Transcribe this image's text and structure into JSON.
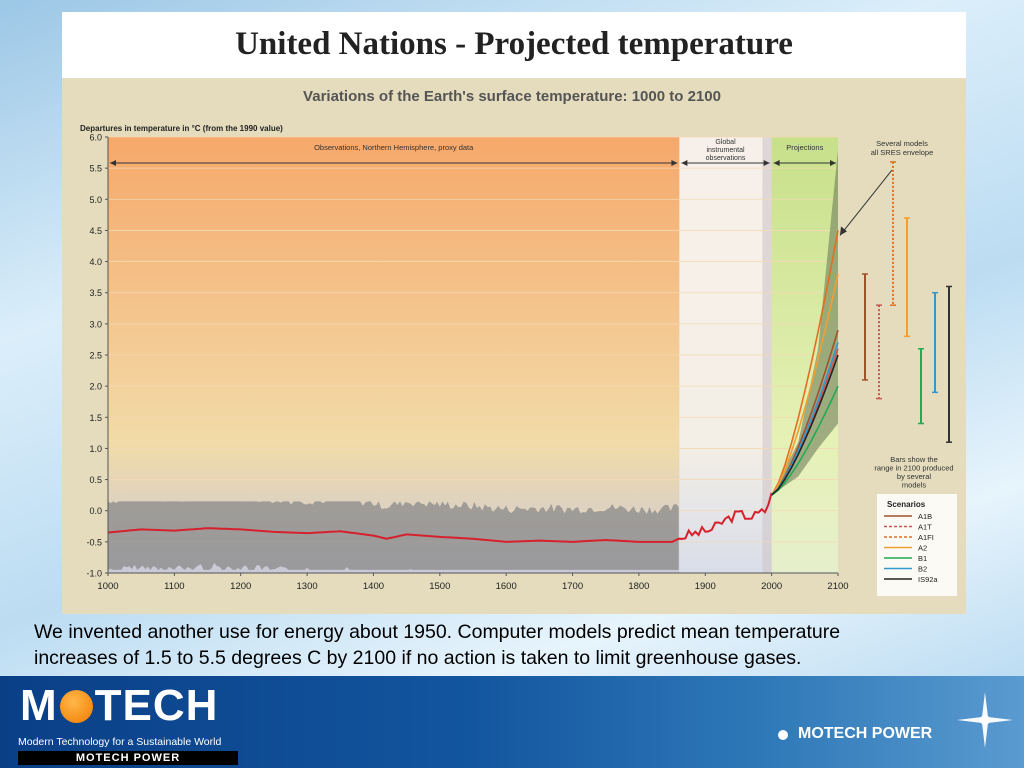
{
  "slide": {
    "title": "United Nations - Projected temperature",
    "caption_line1": "We invented another use for energy about 1950. Computer models predict mean temperature",
    "caption_line2": "increases of 1.5 to 5.5 degrees C by 2100 if no action is taken to limit greenhouse gases."
  },
  "footer": {
    "logo_prefix": "M",
    "logo_suffix": "TECH",
    "tagline": "Modern Technology for a Sustainable World",
    "logo_bar": "MOTECH POWER",
    "brand_label": "MOTECH POWER"
  },
  "chart_data": {
    "type": "line",
    "title": "Variations of the Earth's surface temperature: 1000 to 2100",
    "ylabel": "Departures in temperature in °C (from the 1990 value)",
    "xlim": [
      1000,
      2100
    ],
    "ylim": [
      -1.0,
      6.0
    ],
    "x_ticks": [
      "1000",
      "1100",
      "1200",
      "1300",
      "1400",
      "1500",
      "1600",
      "1700",
      "1800",
      "1900",
      "2000",
      "2100"
    ],
    "y_ticks": [
      "6.0",
      "5.5",
      "5.0",
      "4.5",
      "4.0",
      "3.5",
      "3.0",
      "2.5",
      "2.0",
      "1.5",
      "1.0",
      "0.5",
      "0.0",
      "-0.5",
      "-1.0"
    ],
    "regions": [
      {
        "label": "Observations, Northern Hemisphere, proxy data",
        "from": 1000,
        "to": 1861
      },
      {
        "label": "Global instrumental observations",
        "from": 1861,
        "to": 2000
      },
      {
        "label": "Projections",
        "from": 2000,
        "to": 2100
      }
    ],
    "annotations": {
      "envelope_note": "Several models all SRES envelope",
      "bars_note": "Bars show the range in 2100 produced by several models",
      "scenarios_heading": "Scenarios"
    },
    "observed": {
      "x": [
        1000,
        1050,
        1100,
        1150,
        1200,
        1250,
        1300,
        1350,
        1400,
        1420,
        1450,
        1500,
        1550,
        1600,
        1650,
        1700,
        1750,
        1800,
        1850,
        1870,
        1890,
        1910,
        1930,
        1950,
        1970,
        1990,
        2000
      ],
      "y": [
        -0.35,
        -0.3,
        -0.32,
        -0.28,
        -0.3,
        -0.34,
        -0.36,
        -0.33,
        -0.4,
        -0.45,
        -0.38,
        -0.42,
        -0.45,
        -0.5,
        -0.48,
        -0.5,
        -0.47,
        -0.5,
        -0.5,
        -0.4,
        -0.35,
        -0.3,
        -0.15,
        -0.05,
        -0.1,
        0.0,
        0.25
      ]
    },
    "uncertainty_band": {
      "lower": -0.95,
      "upper": 0.15
    },
    "envelope_2100": [
      1.4,
      5.8
    ],
    "series": [
      {
        "name": "A1B",
        "color": "#a0522d",
        "values_2100": 2.9
      },
      {
        "name": "A1T",
        "color": "#cc5555",
        "values_2100": 2.6
      },
      {
        "name": "A1FI",
        "color": "#e07020",
        "values_2100": 4.5
      },
      {
        "name": "A2",
        "color": "#f0a030",
        "values_2100": 3.8
      },
      {
        "name": "B1",
        "color": "#22aa55",
        "values_2100": 2.0
      },
      {
        "name": "B2",
        "color": "#3399cc",
        "values_2100": 2.7
      },
      {
        "name": "IS92a",
        "color": "#222222",
        "values_2100": 2.5
      }
    ],
    "range_bars": [
      {
        "name": "A1B",
        "color": "#a0522d",
        "low": 2.1,
        "high": 3.8
      },
      {
        "name": "A1T",
        "color": "#cc5555",
        "low": 1.8,
        "high": 3.3
      },
      {
        "name": "A1FI",
        "color": "#e07020",
        "low": 3.3,
        "high": 5.6
      },
      {
        "name": "A2",
        "color": "#f0a030",
        "low": 2.8,
        "high": 4.7
      },
      {
        "name": "B1",
        "color": "#22aa55",
        "low": 1.4,
        "high": 2.6
      },
      {
        "name": "B2",
        "color": "#3399cc",
        "low": 1.9,
        "high": 3.5
      },
      {
        "name": "IS92a",
        "color": "#333333",
        "low": 1.1,
        "high": 3.6
      }
    ]
  }
}
